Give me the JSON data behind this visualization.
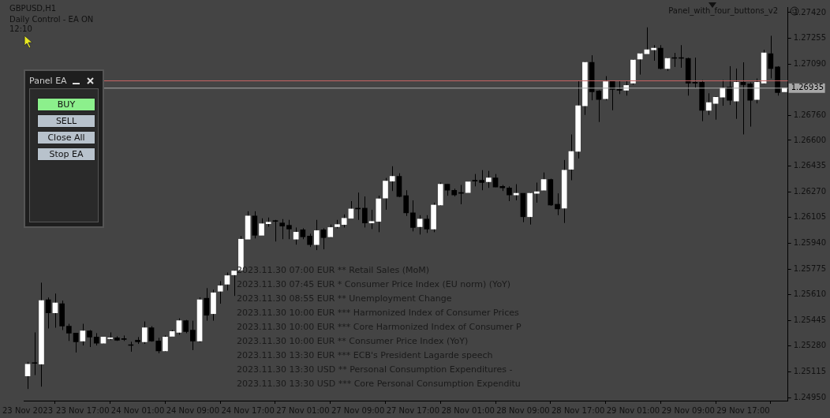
{
  "chart_data": {
    "type": "candlestick",
    "title": "GBPUSD,H1",
    "annotations": [
      "Daily Control - EA ON",
      "12:10",
      "Panel_with_four_buttons_v2",
      "Panel EA",
      "BUY",
      "SELL",
      "Close All",
      "Stop EA",
      "2023.11.30 07:00 EUR ** Retail Sales (MoM)",
      "2023.11.30 07:45 EUR * Consumer Price Index (EU norm) (YoY)",
      "2023.11.30 08:55 EUR ** Unemployment Change",
      "2023.11.30 10:00 EUR *** Harmonized Index of Consumer Prices",
      "2023.11.30 10:00 EUR *** Core Harmonized Index of Consumer P",
      "2023.11.30 10:00 EUR ** Consumer Price Index (YoY)",
      "2023.11.30 13:30 EUR *** ECB's President Lagarde speech",
      "2023.11.30 13:30 USD ** Personal Consumption Expenditures -",
      "2023.11.30 13:30 USD *** Core Personal Consumption Expenditu"
    ],
    "categories": [
      "23 Nov 2023",
      null,
      null,
      null,
      null,
      null,
      null,
      null,
      "23 Nov 17:00",
      null,
      null,
      null,
      null,
      null,
      null,
      null,
      "24 Nov 01:00",
      null,
      null,
      null,
      null,
      null,
      null,
      null,
      "24 Nov 09:00",
      null,
      null,
      null,
      null,
      null,
      null,
      null,
      "24 Nov 17:00",
      null,
      null,
      null,
      null,
      null,
      null,
      null,
      "27 Nov 01:00",
      null,
      null,
      null,
      null,
      null,
      null,
      null,
      "27 Nov 09:00",
      null,
      null,
      null,
      null,
      null,
      null,
      null,
      "27 Nov 17:00",
      null,
      null,
      null,
      null,
      null,
      null,
      null,
      "28 Nov 01:00",
      null,
      null,
      null,
      null,
      null,
      null,
      null,
      "28 Nov 09:00",
      null,
      null,
      null,
      null,
      null,
      null,
      null,
      "28 Nov 17:00",
      null,
      null,
      null,
      null,
      null,
      null,
      null,
      "29 Nov 01:00",
      null,
      null,
      null,
      null,
      null,
      null,
      null,
      "29 Nov 09:00",
      null,
      null,
      null,
      null,
      null,
      null,
      null,
      "29 Nov 17:00",
      null,
      null,
      null,
      null,
      null,
      null
    ],
    "ohlc": [
      [
        1.25089,
        1.25179,
        1.25005,
        1.25164
      ],
      [
        1.25169,
        1.25368,
        1.25094,
        1.25169
      ],
      [
        1.25164,
        1.25687,
        1.2502,
        1.25572
      ],
      [
        1.25577,
        1.25592,
        1.25393,
        1.25493
      ],
      [
        1.25493,
        1.25617,
        1.25398,
        1.25557
      ],
      [
        1.25552,
        1.25572,
        1.25383,
        1.25408
      ],
      [
        1.25408,
        1.25423,
        1.25313,
        1.25363
      ],
      [
        1.25363,
        1.25363,
        1.25239,
        1.25308
      ],
      [
        1.25313,
        1.25423,
        1.25284,
        1.25378
      ],
      [
        1.25378,
        1.25383,
        1.25274,
        1.25338
      ],
      [
        1.25338,
        1.25363,
        1.25284,
        1.25298
      ],
      [
        1.25298,
        1.25338,
        1.25294,
        1.25338
      ],
      [
        1.25328,
        1.25368,
        1.25318,
        1.25333
      ],
      [
        1.25333,
        1.25343,
        1.25313,
        1.25318
      ],
      [
        1.25323,
        1.25348,
        1.25313,
        1.25323
      ],
      [
        1.25289,
        1.25308,
        1.25244,
        1.25284
      ],
      [
        1.25318,
        1.25338,
        1.25294,
        1.25308
      ],
      [
        1.25308,
        1.25438,
        1.25294,
        1.25398
      ],
      [
        1.25398,
        1.25408,
        1.25308,
        1.25313
      ],
      [
        1.25313,
        1.25333,
        1.25234,
        1.25249
      ],
      [
        1.25249,
        1.25348,
        1.25244,
        1.25338
      ],
      [
        1.25343,
        1.25383,
        1.25343,
        1.25373
      ],
      [
        1.25368,
        1.25458,
        1.25353,
        1.25443
      ],
      [
        1.25443,
        1.25448,
        1.25363,
        1.25373
      ],
      [
        1.25383,
        1.25443,
        1.25254,
        1.25313
      ],
      [
        1.25313,
        1.25592,
        1.25304,
        1.25577
      ],
      [
        1.25587,
        1.25652,
        1.25443,
        1.25478
      ],
      [
        1.25488,
        1.25642,
        1.25443,
        1.25622
      ],
      [
        1.25632,
        1.25697,
        1.25552,
        1.25667
      ],
      [
        1.25677,
        1.25752,
        1.25637,
        1.25732
      ],
      [
        1.25737,
        1.25767,
        1.25602,
        1.25762
      ],
      [
        1.25767,
        1.25986,
        1.25767,
        1.25966
      ],
      [
        1.25966,
        1.26145,
        1.25966,
        1.26115
      ],
      [
        1.26115,
        1.26145,
        1.25971,
        1.25991
      ],
      [
        1.25991,
        1.261,
        1.25991,
        1.26065
      ],
      [
        1.26065,
        1.26105,
        1.26046,
        1.26075
      ],
      [
        1.2608,
        1.2609,
        1.25951,
        1.2608
      ],
      [
        1.2607,
        1.26095,
        1.25966,
        1.2605
      ],
      [
        1.26055,
        1.2609,
        1.25966,
        1.26031
      ],
      [
        1.25966,
        1.26041,
        1.25931,
        1.26011
      ],
      [
        1.26026,
        1.26036,
        1.25966,
        1.25981
      ],
      [
        1.25986,
        1.26001,
        1.25916,
        1.25931
      ],
      [
        1.25931,
        1.2609,
        1.25896,
        1.26021
      ],
      [
        1.26026,
        1.26036,
        1.25901,
        1.25976
      ],
      [
        1.25981,
        1.2606,
        1.25976,
        1.26041
      ],
      [
        1.26046,
        1.2609,
        1.26036,
        1.2606
      ],
      [
        1.2606,
        1.26125,
        1.26041,
        1.261
      ],
      [
        1.261,
        1.2621,
        1.261,
        1.2616
      ],
      [
        1.2616,
        1.26265,
        1.2609,
        1.2616
      ],
      [
        1.26165,
        1.2624,
        1.26041,
        1.2607
      ],
      [
        1.2607,
        1.26155,
        1.26031,
        1.2608
      ],
      [
        1.2608,
        1.26245,
        1.26011,
        1.26225
      ],
      [
        1.2623,
        1.26359,
        1.26155,
        1.26339
      ],
      [
        1.26339,
        1.26434,
        1.26275,
        1.26369
      ],
      [
        1.26369,
        1.26389,
        1.26235,
        1.2624
      ],
      [
        1.26245,
        1.2628,
        1.26115,
        1.26135
      ],
      [
        1.26135,
        1.26215,
        1.26016,
        1.26041
      ],
      [
        1.26046,
        1.2612,
        1.25996,
        1.26095
      ],
      [
        1.26095,
        1.2612,
        1.26006,
        1.26031
      ],
      [
        1.26031,
        1.262,
        1.26011,
        1.26185
      ],
      [
        1.26185,
        1.26329,
        1.2618,
        1.26319
      ],
      [
        1.26319,
        1.26319,
        1.26245,
        1.2628
      ],
      [
        1.2628,
        1.2629,
        1.2624,
        1.2625
      ],
      [
        1.2626,
        1.26314,
        1.2619,
        1.2626
      ],
      [
        1.26265,
        1.26334,
        1.26265,
        1.26334
      ],
      [
        1.26339,
        1.26384,
        1.26305,
        1.26339
      ],
      [
        1.26344,
        1.26409,
        1.2628,
        1.26329
      ],
      [
        1.26334,
        1.26404,
        1.26295,
        1.26359
      ],
      [
        1.26359,
        1.26384,
        1.263,
        1.263
      ],
      [
        1.26305,
        1.26314,
        1.26275,
        1.26295
      ],
      [
        1.26295,
        1.26305,
        1.2621,
        1.2625
      ],
      [
        1.2625,
        1.26319,
        1.26215,
        1.2626
      ],
      [
        1.2626,
        1.2626,
        1.26075,
        1.2611
      ],
      [
        1.2611,
        1.26265,
        1.2606,
        1.2626
      ],
      [
        1.2626,
        1.26329,
        1.262,
        1.2627
      ],
      [
        1.2628,
        1.26394,
        1.26275,
        1.26349
      ],
      [
        1.26349,
        1.26354,
        1.2618,
        1.26185
      ],
      [
        1.2619,
        1.2626,
        1.2612,
        1.2616
      ],
      [
        1.26165,
        1.26474,
        1.2607,
        1.26409
      ],
      [
        1.26414,
        1.26638,
        1.26344,
        1.26529
      ],
      [
        1.26529,
        1.26982,
        1.26484,
        1.26822
      ],
      [
        1.26822,
        1.27106,
        1.26763,
        1.27101
      ],
      [
        1.27101,
        1.27146,
        1.26857,
        1.26912
      ],
      [
        1.26917,
        1.26922,
        1.26718,
        1.26862
      ],
      [
        1.26867,
        1.27012,
        1.26857,
        1.26977
      ],
      [
        1.26982,
        1.26982,
        1.26793,
        1.26927
      ],
      [
        1.26922,
        1.26982,
        1.26897,
        1.26922
      ],
      [
        1.26922,
        1.26982,
        1.26887,
        1.26952
      ],
      [
        1.26967,
        1.27121,
        1.26957,
        1.27116
      ],
      [
        1.27121,
        1.27161,
        1.27022,
        1.27156
      ],
      [
        1.27156,
        1.27325,
        1.27156,
        1.27181
      ],
      [
        1.27181,
        1.27211,
        1.27111,
        1.27191
      ],
      [
        1.27191,
        1.27211,
        1.27056,
        1.27061
      ],
      [
        1.27061,
        1.27131,
        1.27046,
        1.27126
      ],
      [
        1.27126,
        1.27161,
        1.27071,
        1.27126
      ],
      [
        1.27126,
        1.27211,
        1.27066,
        1.27126
      ],
      [
        1.27126,
        1.27131,
        1.26887,
        1.26967
      ],
      [
        1.26967,
        1.27131,
        1.26937,
        1.26967
      ],
      [
        1.26972,
        1.26987,
        1.26723,
        1.26793
      ],
      [
        1.26793,
        1.26902,
        1.26763,
        1.26842
      ],
      [
        1.26837,
        1.26882,
        1.26733,
        1.26877
      ],
      [
        1.26877,
        1.26987,
        1.26822,
        1.26937
      ],
      [
        1.26942,
        1.27076,
        1.26827,
        1.26857
      ],
      [
        1.26852,
        1.27061,
        1.26738,
        1.26972
      ],
      [
        1.26972,
        1.27101,
        1.26638,
        1.26957
      ],
      [
        1.26962,
        1.26972,
        1.26688,
        1.26857
      ],
      [
        1.26862,
        1.26997,
        1.26837,
        1.26972
      ],
      [
        1.26967,
        1.27181,
        1.26962,
        1.27161
      ],
      [
        1.27156,
        1.27271,
        1.26997,
        1.27061
      ],
      [
        1.27071,
        1.27076,
        1.26887,
        1.26907
      ],
      [
        1.26912,
        1.26937,
        1.26912,
        1.26937
      ]
    ],
    "color": "#000000",
    "colors": [
      "#ffffff",
      "#000000",
      "#ffffff",
      "#000000",
      "#ffffff",
      "#000000",
      "#000000",
      "#000000",
      "#ffffff",
      "#000000",
      "#000000",
      "#ffffff",
      "#ffffff",
      "#000000",
      "#000000",
      "#000000",
      "#000000",
      "#ffffff",
      "#000000",
      "#000000",
      "#ffffff",
      "#ffffff",
      "#ffffff",
      "#000000",
      "#000000",
      "#ffffff",
      "#000000",
      "#ffffff",
      "#ffffff",
      "#ffffff",
      "#ffffff",
      "#ffffff",
      "#ffffff",
      "#000000",
      "#ffffff",
      "#ffffff",
      "#000000",
      "#000000",
      "#000000",
      "#ffffff",
      "#000000",
      "#000000",
      "#ffffff",
      "#000000",
      "#ffffff",
      "#ffffff",
      "#ffffff",
      "#ffffff",
      "#000000",
      "#000000",
      "#ffffff",
      "#ffffff",
      "#ffffff",
      "#ffffff",
      "#000000",
      "#000000",
      "#000000",
      "#ffffff",
      "#000000",
      "#ffffff",
      "#ffffff",
      "#000000",
      "#000000",
      "#000000",
      "#ffffff",
      "#000000",
      "#000000",
      "#ffffff",
      "#000000",
      "#000000",
      "#000000",
      "#ffffff",
      "#000000",
      "#ffffff",
      "#ffffff",
      "#ffffff",
      "#000000",
      "#000000",
      "#ffffff",
      "#ffffff",
      "#ffffff",
      "#ffffff",
      "#000000",
      "#000000",
      "#ffffff",
      "#000000",
      "#000000",
      "#ffffff",
      "#ffffff",
      "#ffffff",
      "#ffffff",
      "#ffffff",
      "#000000",
      "#ffffff",
      "#000000",
      "#000000",
      "#000000",
      "#000000",
      "#000000",
      "#ffffff",
      "#ffffff",
      "#ffffff",
      "#000000",
      "#ffffff",
      "#000000",
      "#000000",
      "#ffffff",
      "#ffffff",
      "#000000",
      "#000000",
      "#ffffff"
    ],
    "ylim": [
      1.2493,
      1.27455
    ],
    "yticks": [
      {
        "value": 1.2742,
        "label": "1.27420"
      },
      {
        "value": 1.27255,
        "label": "1.27255"
      },
      {
        "value": 1.2709,
        "label": "1.27090"
      },
      {
        "value": 1.2676,
        "label": "1.26760"
      },
      {
        "value": 1.266,
        "label": "1.26600"
      },
      {
        "value": 1.26435,
        "label": "1.26435"
      },
      {
        "value": 1.2627,
        "label": "1.26270"
      },
      {
        "value": 1.26105,
        "label": "1.26105"
      },
      {
        "value": 1.2594,
        "label": "1.25940"
      },
      {
        "value": 1.25775,
        "label": "1.25775"
      },
      {
        "value": 1.2561,
        "label": "1.25610"
      },
      {
        "value": 1.25445,
        "label": "1.25445"
      },
      {
        "value": 1.2528,
        "label": "1.25280"
      },
      {
        "value": 1.25115,
        "label": "1.25115"
      },
      {
        "value": 1.2495,
        "label": "1.24950"
      }
    ],
    "ref_lines": [
      {
        "axis": "y",
        "value": 1.26982,
        "color": "#c86464"
      },
      {
        "axis": "y",
        "value": 1.26935,
        "label": "1.26935",
        "color": "#a8a8a8"
      }
    ],
    "grid": false,
    "legend": false
  }
}
